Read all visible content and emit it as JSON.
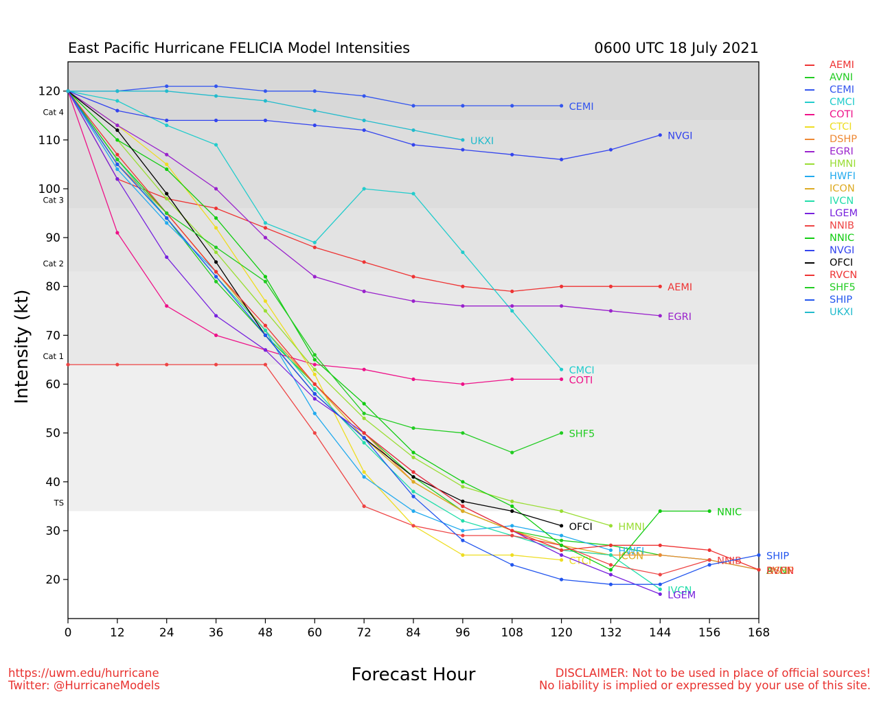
{
  "header": {
    "title": "East Pacific Hurricane FELICIA Model Intensities",
    "datetime": "0600 UTC 18 July 2021"
  },
  "footer": {
    "url": "https://uwm.edu/hurricane",
    "twitter": "Twitter: @HurricaneModels",
    "disclaimer_1": "DISCLAIMER: Not to be used in place of official sources!",
    "disclaimer_2": "No liability is implied or expressed by your use of this site."
  },
  "chart_data": {
    "type": "line",
    "title": "East Pacific Hurricane FELICIA Model Intensities",
    "subtitle": "0600 UTC 18 July 2021",
    "xlabel": "Forecast Hour",
    "ylabel": "Intensity (kt)",
    "xlim": [
      0,
      168
    ],
    "ylim": [
      12,
      126
    ],
    "xticks": [
      0,
      12,
      24,
      36,
      48,
      60,
      72,
      84,
      96,
      108,
      120,
      132,
      144,
      156,
      168
    ],
    "yticks": [
      20,
      30,
      40,
      50,
      60,
      70,
      80,
      90,
      100,
      110,
      120
    ],
    "grid": false,
    "legend_position": "right",
    "categories_bands": [
      {
        "label": "TS",
        "lower": 34,
        "upper": 64,
        "color": "#efefef"
      },
      {
        "label": "Cat 1",
        "lower": 64,
        "upper": 83,
        "color": "#e8e8e8"
      },
      {
        "label": "Cat 2",
        "lower": 83,
        "upper": 96,
        "color": "#e3e3e3"
      },
      {
        "label": "Cat 3",
        "lower": 96,
        "upper": 114,
        "color": "#dddddd"
      },
      {
        "label": "Cat 4",
        "lower": 114,
        "upper": 126,
        "color": "#d8d8d8"
      }
    ],
    "series": [
      {
        "name": "AEMI",
        "color": "#ee3333",
        "points": [
          [
            0,
            120
          ],
          [
            12,
            102
          ],
          [
            24,
            98
          ],
          [
            36,
            96
          ],
          [
            48,
            92
          ],
          [
            60,
            88
          ],
          [
            72,
            85
          ],
          [
            84,
            82
          ],
          [
            96,
            80
          ],
          [
            108,
            79
          ],
          [
            120,
            80
          ],
          [
            132,
            80
          ],
          [
            144,
            80
          ]
        ]
      },
      {
        "name": "AVNI",
        "color": "#22cc22",
        "points": [
          [
            0,
            120
          ],
          [
            12,
            105
          ],
          [
            24,
            94
          ],
          [
            36,
            81
          ],
          [
            48,
            70
          ],
          [
            60,
            60
          ],
          [
            72,
            50
          ],
          [
            84,
            41
          ],
          [
            96,
            34
          ],
          [
            108,
            30
          ],
          [
            120,
            28
          ],
          [
            132,
            27
          ],
          [
            144,
            25
          ],
          [
            156,
            24
          ],
          [
            168,
            22
          ]
        ]
      },
      {
        "name": "CEMI",
        "color": "#3355ee",
        "points": [
          [
            0,
            120
          ],
          [
            12,
            120
          ],
          [
            24,
            121
          ],
          [
            36,
            121
          ],
          [
            48,
            120
          ],
          [
            60,
            120
          ],
          [
            72,
            119
          ],
          [
            84,
            117
          ],
          [
            96,
            117
          ],
          [
            108,
            117
          ],
          [
            120,
            117
          ]
        ]
      },
      {
        "name": "CMCI",
        "color": "#22cccc",
        "points": [
          [
            0,
            120
          ],
          [
            12,
            118
          ],
          [
            24,
            113
          ],
          [
            36,
            109
          ],
          [
            48,
            93
          ],
          [
            60,
            89
          ],
          [
            72,
            100
          ],
          [
            84,
            99
          ],
          [
            96,
            87
          ],
          [
            108,
            75
          ],
          [
            120,
            63
          ]
        ]
      },
      {
        "name": "COTI",
        "color": "#ee1188",
        "points": [
          [
            0,
            120
          ],
          [
            12,
            91
          ],
          [
            24,
            76
          ],
          [
            36,
            70
          ],
          [
            48,
            67
          ],
          [
            60,
            64
          ],
          [
            72,
            63
          ],
          [
            84,
            61
          ],
          [
            96,
            60
          ],
          [
            108,
            61
          ],
          [
            120,
            61
          ]
        ]
      },
      {
        "name": "CTCI",
        "color": "#eedd22",
        "points": [
          [
            0,
            120
          ],
          [
            12,
            113
          ],
          [
            24,
            105
          ],
          [
            36,
            92
          ],
          [
            48,
            77
          ],
          [
            60,
            62
          ],
          [
            72,
            42
          ],
          [
            84,
            31
          ],
          [
            96,
            25
          ],
          [
            108,
            25
          ],
          [
            120,
            24
          ]
        ]
      },
      {
        "name": "DSHP",
        "color": "#ee8833",
        "points": [
          [
            0,
            120
          ],
          [
            12,
            105
          ],
          [
            24,
            95
          ],
          [
            36,
            83
          ],
          [
            48,
            71
          ],
          [
            60,
            60
          ],
          [
            72,
            50
          ],
          [
            84,
            40
          ],
          [
            96,
            34
          ],
          [
            108,
            30
          ],
          [
            120,
            26
          ],
          [
            132,
            25
          ],
          [
            144,
            25
          ],
          [
            156,
            24
          ],
          [
            168,
            22
          ]
        ]
      },
      {
        "name": "EGRI",
        "color": "#9922cc",
        "points": [
          [
            0,
            120
          ],
          [
            12,
            113
          ],
          [
            24,
            107
          ],
          [
            36,
            100
          ],
          [
            48,
            90
          ],
          [
            60,
            82
          ],
          [
            72,
            79
          ],
          [
            84,
            77
          ],
          [
            96,
            76
          ],
          [
            108,
            76
          ],
          [
            120,
            76
          ],
          [
            132,
            75
          ],
          [
            144,
            74
          ]
        ]
      },
      {
        "name": "HMNI",
        "color": "#99dd33",
        "points": [
          [
            0,
            120
          ],
          [
            12,
            110
          ],
          [
            24,
            98
          ],
          [
            36,
            87
          ],
          [
            48,
            75
          ],
          [
            60,
            63
          ],
          [
            72,
            53
          ],
          [
            84,
            45
          ],
          [
            96,
            39
          ],
          [
            108,
            36
          ],
          [
            120,
            34
          ],
          [
            132,
            31
          ]
        ]
      },
      {
        "name": "HWFI",
        "color": "#22aaee",
        "points": [
          [
            0,
            120
          ],
          [
            12,
            104
          ],
          [
            24,
            93
          ],
          [
            36,
            83
          ],
          [
            48,
            71
          ],
          [
            60,
            54
          ],
          [
            72,
            41
          ],
          [
            84,
            34
          ],
          [
            96,
            30
          ],
          [
            108,
            31
          ],
          [
            120,
            29
          ],
          [
            132,
            26
          ]
        ]
      },
      {
        "name": "ICON",
        "color": "#ddaa22",
        "points": [
          [
            0,
            120
          ],
          [
            12,
            106
          ],
          [
            24,
            95
          ],
          [
            36,
            83
          ],
          [
            48,
            71
          ],
          [
            60,
            60
          ],
          [
            72,
            49
          ],
          [
            84,
            40
          ],
          [
            96,
            34
          ],
          [
            108,
            30
          ],
          [
            120,
            27
          ],
          [
            132,
            25
          ]
        ]
      },
      {
        "name": "IVCN",
        "color": "#22ddaa",
        "points": [
          [
            0,
            120
          ],
          [
            12,
            106
          ],
          [
            24,
            94
          ],
          [
            36,
            82
          ],
          [
            48,
            71
          ],
          [
            60,
            59
          ],
          [
            72,
            48
          ],
          [
            84,
            38
          ],
          [
            96,
            32
          ],
          [
            108,
            29
          ],
          [
            120,
            26
          ],
          [
            132,
            25
          ],
          [
            144,
            18
          ]
        ]
      },
      {
        "name": "LGEM",
        "color": "#7722dd",
        "points": [
          [
            0,
            120
          ],
          [
            12,
            102
          ],
          [
            24,
            86
          ],
          [
            36,
            74
          ],
          [
            48,
            67
          ],
          [
            60,
            57
          ],
          [
            72,
            50
          ],
          [
            84,
            42
          ],
          [
            96,
            35
          ],
          [
            108,
            30
          ],
          [
            120,
            25
          ],
          [
            132,
            21
          ],
          [
            144,
            17
          ]
        ]
      },
      {
        "name": "NNIB",
        "color": "#ee4444",
        "points": [
          [
            0,
            64
          ],
          [
            12,
            64
          ],
          [
            24,
            64
          ],
          [
            36,
            64
          ],
          [
            48,
            64
          ],
          [
            60,
            50
          ],
          [
            72,
            35
          ],
          [
            84,
            31
          ],
          [
            96,
            29
          ],
          [
            108,
            29
          ],
          [
            120,
            27
          ],
          [
            132,
            23
          ],
          [
            144,
            21
          ],
          [
            156,
            24
          ]
        ]
      },
      {
        "name": "NNIC",
        "color": "#11cc11",
        "points": [
          [
            0,
            120
          ],
          [
            12,
            110
          ],
          [
            24,
            104
          ],
          [
            36,
            94
          ],
          [
            48,
            82
          ],
          [
            60,
            65
          ],
          [
            72,
            56
          ],
          [
            84,
            46
          ],
          [
            96,
            40
          ],
          [
            108,
            35
          ],
          [
            120,
            27
          ],
          [
            132,
            22
          ],
          [
            144,
            34
          ],
          [
            156,
            34
          ]
        ]
      },
      {
        "name": "NVGI",
        "color": "#3344ee",
        "points": [
          [
            0,
            120
          ],
          [
            12,
            116
          ],
          [
            24,
            114
          ],
          [
            36,
            114
          ],
          [
            48,
            114
          ],
          [
            60,
            113
          ],
          [
            72,
            112
          ],
          [
            84,
            109
          ],
          [
            96,
            108
          ],
          [
            108,
            107
          ],
          [
            120,
            106
          ],
          [
            132,
            108
          ],
          [
            144,
            111
          ]
        ]
      },
      {
        "name": "OFCI",
        "color": "#000000",
        "points": [
          [
            0,
            120
          ],
          [
            12,
            112
          ],
          [
            24,
            99
          ],
          [
            36,
            85
          ],
          [
            48,
            70
          ],
          [
            60,
            58
          ],
          [
            72,
            49
          ],
          [
            84,
            41
          ],
          [
            96,
            36
          ],
          [
            108,
            34
          ],
          [
            120,
            31
          ]
        ]
      },
      {
        "name": "RVCN",
        "color": "#ee3333",
        "points": [
          [
            0,
            120
          ],
          [
            12,
            107
          ],
          [
            24,
            95
          ],
          [
            36,
            83
          ],
          [
            48,
            72
          ],
          [
            60,
            60
          ],
          [
            72,
            50
          ],
          [
            84,
            42
          ],
          [
            96,
            35
          ],
          [
            108,
            30
          ],
          [
            120,
            26
          ],
          [
            132,
            27
          ],
          [
            144,
            27
          ],
          [
            156,
            26
          ],
          [
            168,
            22
          ]
        ]
      },
      {
        "name": "SHF5",
        "color": "#22cc22",
        "points": [
          [
            0,
            120
          ],
          [
            12,
            106
          ],
          [
            24,
            95
          ],
          [
            36,
            88
          ],
          [
            48,
            81
          ],
          [
            60,
            66
          ],
          [
            72,
            54
          ],
          [
            84,
            51
          ],
          [
            96,
            50
          ],
          [
            108,
            46
          ],
          [
            120,
            50
          ]
        ]
      },
      {
        "name": "SHIP",
        "color": "#2255ee",
        "points": [
          [
            0,
            120
          ],
          [
            12,
            105
          ],
          [
            24,
            94
          ],
          [
            36,
            82
          ],
          [
            48,
            70
          ],
          [
            60,
            58
          ],
          [
            72,
            49
          ],
          [
            84,
            37
          ],
          [
            96,
            28
          ],
          [
            108,
            23
          ],
          [
            120,
            20
          ],
          [
            132,
            19
          ],
          [
            144,
            19
          ],
          [
            156,
            23
          ],
          [
            168,
            25
          ]
        ]
      },
      {
        "name": "UKXI",
        "color": "#22bbcc",
        "points": [
          [
            0,
            120
          ],
          [
            12,
            120
          ],
          [
            24,
            120
          ],
          [
            36,
            119
          ],
          [
            48,
            118
          ],
          [
            60,
            116
          ],
          [
            72,
            114
          ],
          [
            84,
            112
          ],
          [
            96,
            110
          ]
        ]
      }
    ]
  }
}
